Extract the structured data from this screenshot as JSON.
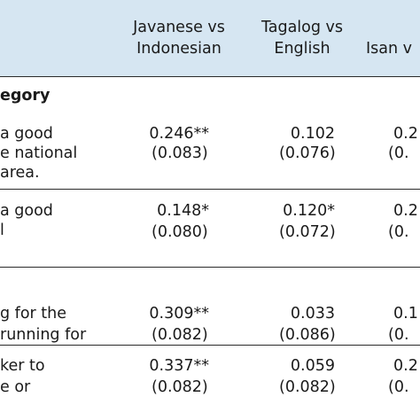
{
  "columns": [
    {
      "line1": "Javanese vs",
      "line2": "Indonesian"
    },
    {
      "line1": "Tagalog vs",
      "line2": "English"
    },
    {
      "line1": "Isan v",
      "line2": ""
    }
  ],
  "section_label": "egory",
  "rows": [
    {
      "label_lines": [
        "a good",
        "e national",
        "area."
      ],
      "cells": [
        {
          "coef": "0.246**",
          "se": "(0.083)"
        },
        {
          "coef": "0.102",
          "se": "(0.076)"
        },
        {
          "coef": "0.2",
          "se": "(0."
        }
      ]
    },
    {
      "label_lines": [
        "a good",
        "l",
        ""
      ],
      "cells": [
        {
          "coef": "0.148*",
          "se": "(0.080)"
        },
        {
          "coef": "0.120*",
          "se": "(0.072)"
        },
        {
          "coef": "0.2",
          "se": "(0."
        }
      ]
    },
    {
      "label_lines": [
        "g for the",
        "running for",
        ""
      ],
      "cells": [
        {
          "coef": "0.309**",
          "se": "(0.082)"
        },
        {
          "coef": "0.033",
          "se": "(0.086)"
        },
        {
          "coef": "0.1",
          "se": "(0."
        }
      ]
    },
    {
      "label_lines": [
        "ker to",
        "e or",
        ""
      ],
      "cells": [
        {
          "coef": "0.337**",
          "se": "(0.082)"
        },
        {
          "coef": "0.059",
          "se": "(0.082)"
        },
        {
          "coef": "0.2",
          "se": "(0."
        }
      ]
    }
  ]
}
